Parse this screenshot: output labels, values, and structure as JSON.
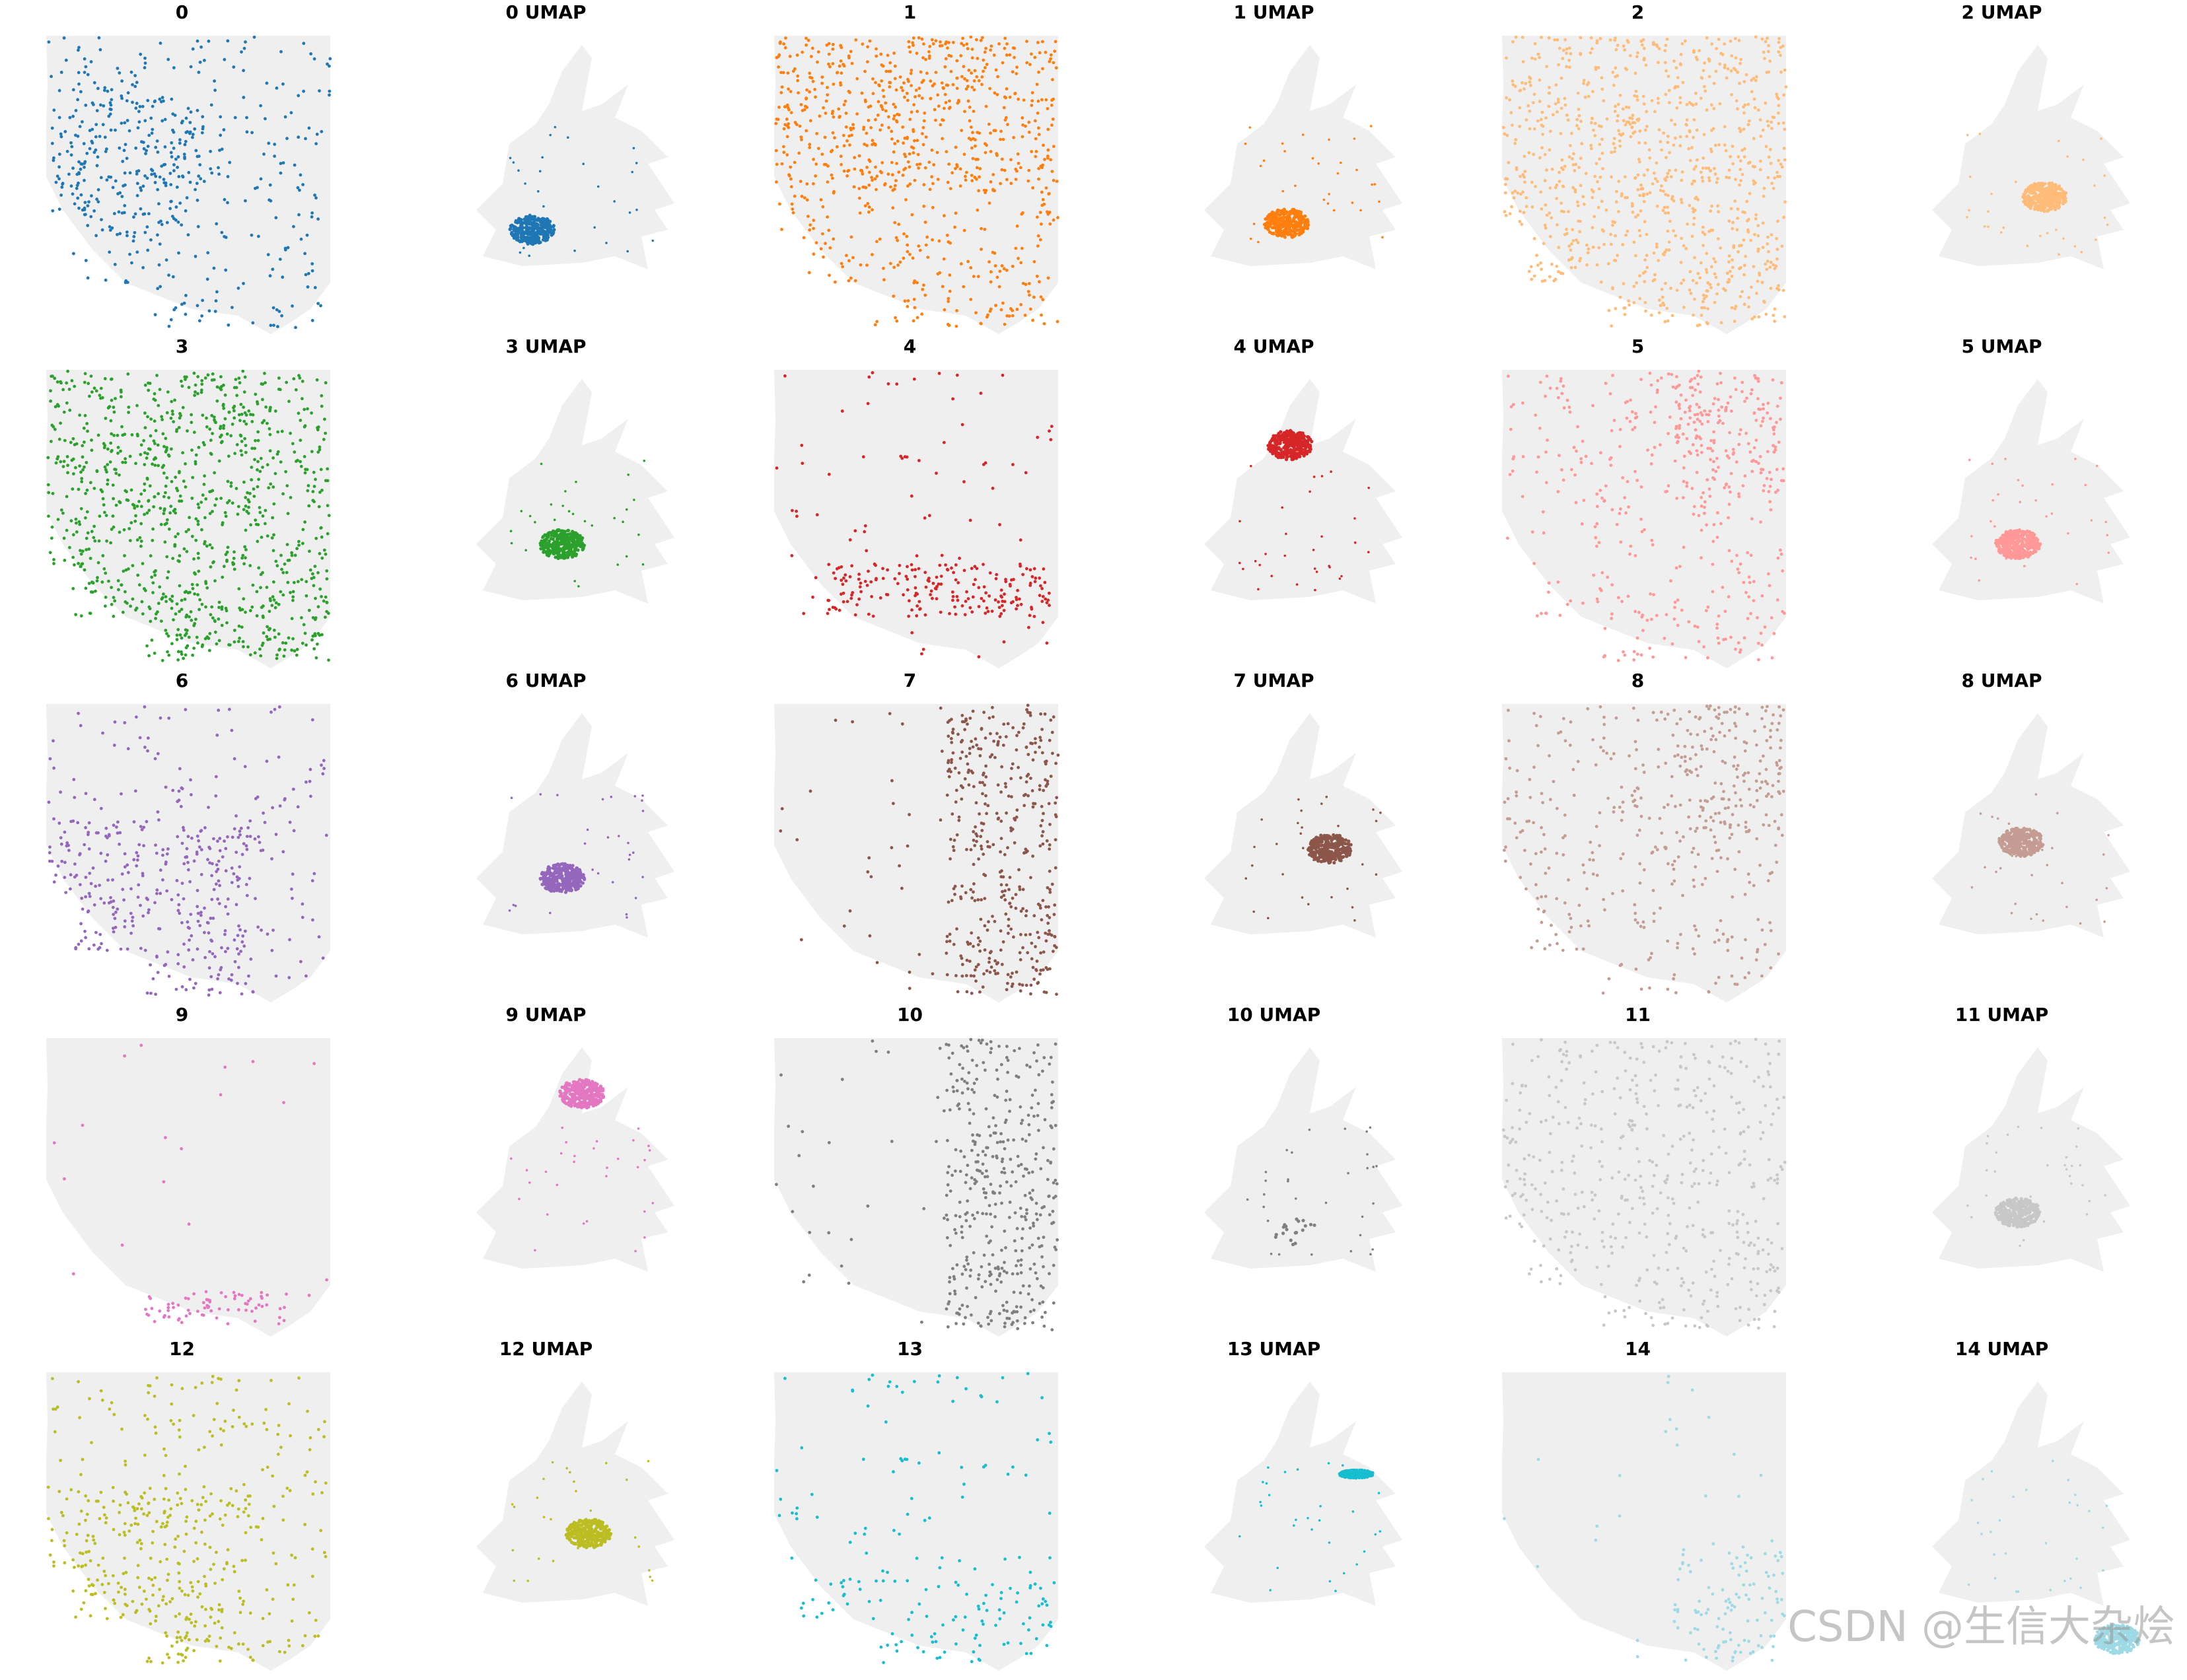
{
  "watermark": "CSDN @生信大杂烩",
  "chart_data": [
    {
      "type": "scatter",
      "panels": [
        {
          "title": "0",
          "kind": "spatial",
          "color": "#1f77b4",
          "pattern": "blobs-left"
        },
        {
          "title": "0 UMAP",
          "kind": "umap",
          "color": "#1f77b4",
          "cluster_region": "lower-left"
        },
        {
          "title": "1",
          "kind": "spatial",
          "color": "#ff7f0e",
          "pattern": "dense-top"
        },
        {
          "title": "1 UMAP",
          "kind": "umap",
          "color": "#ff7f0e",
          "cluster_region": "center-low"
        },
        {
          "title": "2",
          "kind": "spatial",
          "color": "#ffbb78",
          "pattern": "uniform"
        },
        {
          "title": "2 UMAP",
          "kind": "umap",
          "color": "#ffbb78",
          "cluster_region": "center-right"
        },
        {
          "title": "3",
          "kind": "spatial",
          "color": "#2ca02c",
          "pattern": "dense-all"
        },
        {
          "title": "3 UMAP",
          "kind": "umap",
          "color": "#2ca02c",
          "cluster_region": "center"
        },
        {
          "title": "4",
          "kind": "spatial",
          "color": "#d62728",
          "pattern": "band-bottom"
        },
        {
          "title": "4 UMAP",
          "kind": "umap",
          "color": "#d62728",
          "cluster_region": "top"
        },
        {
          "title": "5",
          "kind": "spatial",
          "color": "#ff9896",
          "pattern": "top-right"
        },
        {
          "title": "5 UMAP",
          "kind": "umap",
          "color": "#ff9896",
          "cluster_region": "center"
        },
        {
          "title": "6",
          "kind": "spatial",
          "color": "#9467bd",
          "pattern": "lower-left"
        },
        {
          "title": "6 UMAP",
          "kind": "umap",
          "color": "#9467bd",
          "cluster_region": "center"
        },
        {
          "title": "7",
          "kind": "spatial",
          "color": "#8c564b",
          "pattern": "right-column"
        },
        {
          "title": "7 UMAP",
          "kind": "umap",
          "color": "#8c564b",
          "cluster_region": "right"
        },
        {
          "title": "8",
          "kind": "spatial",
          "color": "#c49c94",
          "pattern": "top-right"
        },
        {
          "title": "8 UMAP",
          "kind": "umap",
          "color": "#c49c94",
          "cluster_region": "center-upper"
        },
        {
          "title": "9",
          "kind": "spatial",
          "color": "#e377c2",
          "pattern": "band-bottom-short"
        },
        {
          "title": "9 UMAP",
          "kind": "umap",
          "color": "#e377c2",
          "cluster_region": "top-right"
        },
        {
          "title": "10",
          "kind": "spatial",
          "color": "#7f7f7f",
          "pattern": "right-column"
        },
        {
          "title": "10 UMAP",
          "kind": "umap",
          "color": "#7f7f7f",
          "cluster_region": "tiny"
        },
        {
          "title": "11",
          "kind": "spatial",
          "color": "#c7c7c7",
          "pattern": "sparse-all"
        },
        {
          "title": "11 UMAP",
          "kind": "umap",
          "color": "#c7c7c7",
          "cluster_region": "center"
        },
        {
          "title": "12",
          "kind": "spatial",
          "color": "#bcbd22",
          "pattern": "lower-left"
        },
        {
          "title": "12 UMAP",
          "kind": "umap",
          "color": "#bcbd22",
          "cluster_region": "center-right"
        },
        {
          "title": "13",
          "kind": "spatial",
          "color": "#17becf",
          "pattern": "edge-bottom"
        },
        {
          "title": "13 UMAP",
          "kind": "umap",
          "color": "#17becf",
          "cluster_region": "right-streak"
        },
        {
          "title": "14",
          "kind": "spatial",
          "color": "#9edae5",
          "pattern": "bottom-right"
        },
        {
          "title": "14 UMAP",
          "kind": "umap",
          "color": "#9edae5",
          "cluster_region": "far-right"
        }
      ],
      "background_color": "#efefef",
      "axes_visible": false,
      "grid": false
    }
  ]
}
